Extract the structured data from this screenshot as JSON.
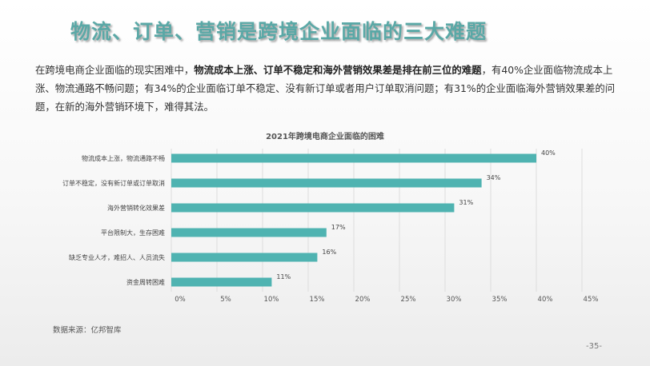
{
  "slide": {
    "title": "物流、订单、营销是跨境企业面临的三大难题",
    "intro": {
      "part1": "在跨境电商企业面临的现实困难中，",
      "bold": "物流成本上涨、订单不稳定和海外营销效果差是排在前三位的难题",
      "part2": "，有40%企业面临物流成本上涨、物流通路不畅问题；有34%的企业面临订单不稳定、没有新订单或者用户订单取消问题；有31%的企业面临海外营销效果差的问题，在新的海外营销环境下，难得其法。"
    },
    "source": "数据来源：亿邦智库",
    "page_number": "-35-"
  },
  "chart_data": {
    "type": "bar",
    "orientation": "horizontal",
    "title": "2021年跨境电商企业面临的困难",
    "categories": [
      "物流成本上涨，物流通路不畅",
      "订单不稳定，没有新订单或订单取消",
      "海外营销转化效果差",
      "平台限制大，生存困难",
      "缺乏专业人才，难招人、人员流失",
      "资金周转困难"
    ],
    "values": [
      40,
      34,
      31,
      17,
      16,
      11
    ],
    "data_labels": [
      "40%",
      "34%",
      "31%",
      "17%",
      "16%",
      "11%"
    ],
    "xticks": [
      0,
      5,
      10,
      15,
      20,
      25,
      30,
      35,
      40,
      45
    ],
    "xtick_labels": [
      "0%",
      "5%",
      "10%",
      "15%",
      "20%",
      "25%",
      "30%",
      "35%",
      "40%",
      "45%"
    ],
    "xlim": [
      0,
      45
    ],
    "grid": true,
    "legend": "none",
    "bar_color": "#4fb3b1"
  }
}
